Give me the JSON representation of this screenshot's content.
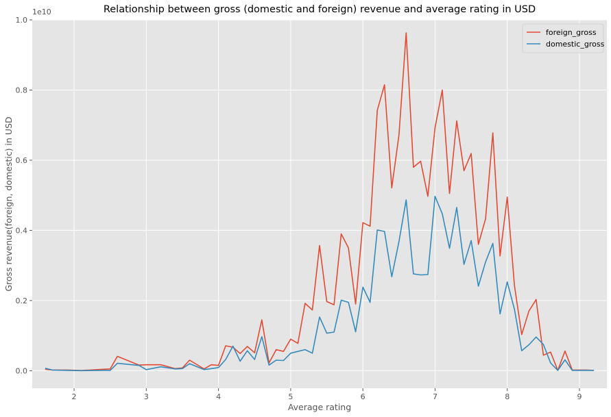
{
  "chart_data": {
    "type": "line",
    "title": "Relationship between gross (domestic and foreign) revenue and average rating in USD",
    "xlabel": "Average rating",
    "ylabel": "Gross revenue(foreign, domestic) in USD",
    "y_offset_text": "1e10",
    "xlim": [
      1.42,
      9.38
    ],
    "ylim": [
      -0.05,
      1.0
    ],
    "x_ticks": [
      2,
      3,
      4,
      5,
      6,
      7,
      8,
      9
    ],
    "y_ticks": [
      0.0,
      0.2,
      0.4,
      0.6,
      0.8,
      1.0
    ],
    "x_tick_labels": [
      "2",
      "3",
      "4",
      "5",
      "6",
      "7",
      "8",
      "9"
    ],
    "y_tick_labels": [
      "0.0",
      "0.2",
      "0.4",
      "0.6",
      "0.8",
      "1.0"
    ],
    "grid": true,
    "legend_position": "top-right",
    "series": [
      {
        "name": "foreign_gross",
        "color": "#E24A33",
        "points": [
          [
            1.6,
            0.004
          ],
          [
            1.7,
            0.002
          ],
          [
            1.9,
            0.002
          ],
          [
            2.1,
            0.0005
          ],
          [
            2.4,
            0.004
          ],
          [
            2.5,
            0.005
          ],
          [
            2.6,
            0.041
          ],
          [
            2.9,
            0.016
          ],
          [
            3.0,
            0.017
          ],
          [
            3.2,
            0.017
          ],
          [
            3.4,
            0.006
          ],
          [
            3.5,
            0.008
          ],
          [
            3.6,
            0.03
          ],
          [
            3.8,
            0.005
          ],
          [
            3.9,
            0.017
          ],
          [
            4.0,
            0.015
          ],
          [
            4.1,
            0.071
          ],
          [
            4.2,
            0.067
          ],
          [
            4.3,
            0.049
          ],
          [
            4.4,
            0.069
          ],
          [
            4.5,
            0.051
          ],
          [
            4.6,
            0.145
          ],
          [
            4.7,
            0.022
          ],
          [
            4.8,
            0.06
          ],
          [
            4.9,
            0.055
          ],
          [
            5.0,
            0.09
          ],
          [
            5.1,
            0.078
          ],
          [
            5.2,
            0.192
          ],
          [
            5.3,
            0.173
          ],
          [
            5.4,
            0.357
          ],
          [
            5.5,
            0.197
          ],
          [
            5.6,
            0.188
          ],
          [
            5.7,
            0.39
          ],
          [
            5.8,
            0.35
          ],
          [
            5.9,
            0.19
          ],
          [
            6.0,
            0.422
          ],
          [
            6.1,
            0.412
          ],
          [
            6.2,
            0.742
          ],
          [
            6.3,
            0.815
          ],
          [
            6.4,
            0.521
          ],
          [
            6.5,
            0.672
          ],
          [
            6.6,
            0.963
          ],
          [
            6.7,
            0.58
          ],
          [
            6.8,
            0.597
          ],
          [
            6.9,
            0.497
          ],
          [
            7.0,
            0.693
          ],
          [
            7.1,
            0.8
          ],
          [
            7.2,
            0.505
          ],
          [
            7.3,
            0.712
          ],
          [
            7.4,
            0.57
          ],
          [
            7.5,
            0.619
          ],
          [
            7.6,
            0.36
          ],
          [
            7.7,
            0.433
          ],
          [
            7.8,
            0.678
          ],
          [
            7.9,
            0.327
          ],
          [
            8.0,
            0.495
          ],
          [
            8.1,
            0.243
          ],
          [
            8.2,
            0.103
          ],
          [
            8.3,
            0.17
          ],
          [
            8.4,
            0.203
          ],
          [
            8.5,
            0.044
          ],
          [
            8.6,
            0.053
          ],
          [
            8.7,
            0.001
          ],
          [
            8.8,
            0.056
          ],
          [
            8.9,
            0.002
          ],
          [
            9.0,
            0.002
          ],
          [
            9.1,
            0.002
          ],
          [
            9.2,
            0.001
          ]
        ]
      },
      {
        "name": "domestic_gross",
        "color": "#348ABD",
        "points": [
          [
            1.6,
            0.007
          ],
          [
            1.7,
            0.002
          ],
          [
            1.9,
            0.001
          ],
          [
            2.1,
            0.0002
          ],
          [
            2.4,
            0.001
          ],
          [
            2.5,
            0.001
          ],
          [
            2.6,
            0.021
          ],
          [
            2.9,
            0.015
          ],
          [
            3.0,
            0.003
          ],
          [
            3.2,
            0.011
          ],
          [
            3.4,
            0.005
          ],
          [
            3.5,
            0.006
          ],
          [
            3.6,
            0.02
          ],
          [
            3.8,
            0.003
          ],
          [
            3.9,
            0.006
          ],
          [
            4.0,
            0.009
          ],
          [
            4.1,
            0.032
          ],
          [
            4.2,
            0.07
          ],
          [
            4.3,
            0.027
          ],
          [
            4.4,
            0.057
          ],
          [
            4.5,
            0.032
          ],
          [
            4.6,
            0.097
          ],
          [
            4.7,
            0.016
          ],
          [
            4.8,
            0.03
          ],
          [
            4.9,
            0.029
          ],
          [
            5.0,
            0.05
          ],
          [
            5.1,
            0.055
          ],
          [
            5.2,
            0.06
          ],
          [
            5.3,
            0.05
          ],
          [
            5.4,
            0.153
          ],
          [
            5.5,
            0.107
          ],
          [
            5.6,
            0.11
          ],
          [
            5.7,
            0.201
          ],
          [
            5.8,
            0.195
          ],
          [
            5.9,
            0.111
          ],
          [
            6.0,
            0.238
          ],
          [
            6.1,
            0.195
          ],
          [
            6.2,
            0.401
          ],
          [
            6.3,
            0.397
          ],
          [
            6.4,
            0.268
          ],
          [
            6.5,
            0.368
          ],
          [
            6.6,
            0.487
          ],
          [
            6.7,
            0.276
          ],
          [
            6.8,
            0.273
          ],
          [
            6.9,
            0.274
          ],
          [
            7.0,
            0.497
          ],
          [
            7.1,
            0.447
          ],
          [
            7.2,
            0.349
          ],
          [
            7.3,
            0.465
          ],
          [
            7.4,
            0.303
          ],
          [
            7.5,
            0.371
          ],
          [
            7.6,
            0.241
          ],
          [
            7.7,
            0.31
          ],
          [
            7.8,
            0.363
          ],
          [
            7.9,
            0.162
          ],
          [
            8.0,
            0.253
          ],
          [
            8.1,
            0.175
          ],
          [
            8.2,
            0.057
          ],
          [
            8.3,
            0.074
          ],
          [
            8.4,
            0.096
          ],
          [
            8.5,
            0.075
          ],
          [
            8.6,
            0.022
          ],
          [
            8.7,
            0.001
          ],
          [
            8.8,
            0.031
          ],
          [
            8.9,
            0.001
          ],
          [
            9.0,
            0.001
          ],
          [
            9.1,
            0.001
          ],
          [
            9.2,
            0.001
          ]
        ]
      }
    ]
  }
}
